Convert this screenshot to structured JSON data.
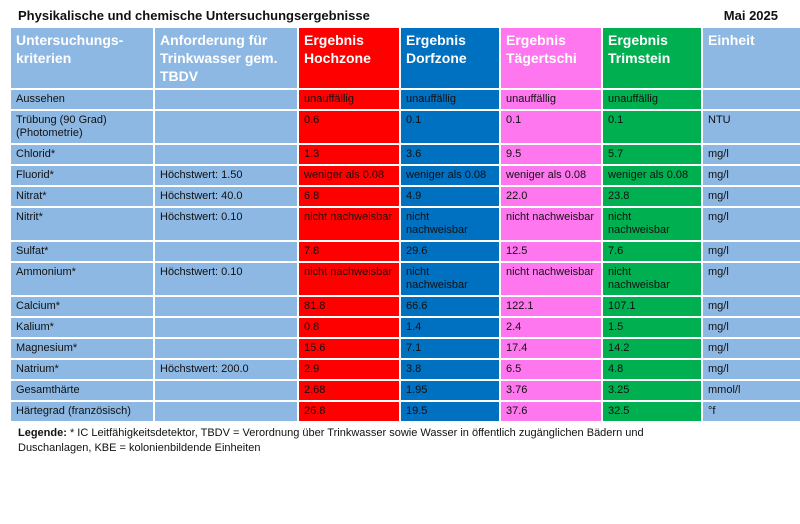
{
  "title": "Physikalische und chemische Untersuchungsergebnisse",
  "date": "Mai 2025",
  "colors": {
    "header_bg": "#8db8e3",
    "hochzone": "#ff0000",
    "dorfzone": "#0070c0",
    "taegertschi": "#ff77ee",
    "trimstein": "#00b050"
  },
  "headers": [
    "Untersuchungs-kriterien",
    "Anforderung für Trinkwasser gem. TBDV",
    "Ergebnis Hochzone",
    "Ergebnis Dorfzone",
    "Ergebnis Tägertschi",
    "Ergebnis Trimstein",
    "Einheit"
  ],
  "rows": [
    [
      "Aussehen",
      "",
      "unauffällig",
      "unauffällig",
      "unauffällig",
      "unauffällig",
      ""
    ],
    [
      "Trübung (90 Grad) (Photometrie)",
      "",
      "0.6",
      "0.1",
      "0.1",
      "0.1",
      "NTU"
    ],
    [
      "Chlorid*",
      "",
      "1.3",
      "3.6",
      "9.5",
      "5.7",
      "mg/l"
    ],
    [
      "Fluorid*",
      "Höchstwert: 1.50",
      "weniger als 0.08",
      "weniger als 0.08",
      "weniger als 0.08",
      "weniger als 0.08",
      "mg/l"
    ],
    [
      "Nitrat*",
      "Höchstwert: 40.0",
      "6.8",
      "4.9",
      "22.0",
      "23.8",
      "mg/l"
    ],
    [
      "Nitrit*",
      "Höchstwert: 0.10",
      "nicht nachweisbar",
      "nicht nachweisbar",
      "nicht nachweisbar",
      "nicht nachweisbar",
      "mg/l"
    ],
    [
      "Sulfat*",
      "",
      "7.8",
      "29.6",
      "12.5",
      "7.6",
      "mg/l"
    ],
    [
      "Ammonium*",
      "Höchstwert: 0.10",
      "nicht nachweisbar",
      "nicht nachweisbar",
      "nicht nachweisbar",
      "nicht nachweisbar",
      "mg/l"
    ],
    [
      "Calcium*",
      "",
      "81.8",
      "66.6",
      "122.1",
      "107.1",
      "mg/l"
    ],
    [
      "Kalium*",
      "",
      "0.8",
      "1.4",
      "2.4",
      "1.5",
      "mg/l"
    ],
    [
      "Magnesium*",
      "",
      "15.6",
      "7.1",
      "17.4",
      "14.2",
      "mg/l"
    ],
    [
      "Natrium*",
      "Höchstwert: 200.0",
      "2.9",
      "3.8",
      "6.5",
      "4.8",
      "mg/l"
    ],
    [
      "Gesamthärte",
      "",
      "2.68",
      "1.95",
      "3.76",
      "3.25",
      "mmol/l"
    ],
    [
      "Härtegrad (französisch)",
      "",
      "26.8",
      "19.5",
      "37.6",
      "32.5",
      "°f"
    ]
  ],
  "legend": {
    "label": "Legende:",
    "text": " * IC Leitfähigkeitsdetektor, TBDV = Verordnung über Trinkwasser sowie Wasser in öffentlich zugänglichen Bädern und Duschanlagen, KBE = kolonienbildende Einheiten"
  }
}
